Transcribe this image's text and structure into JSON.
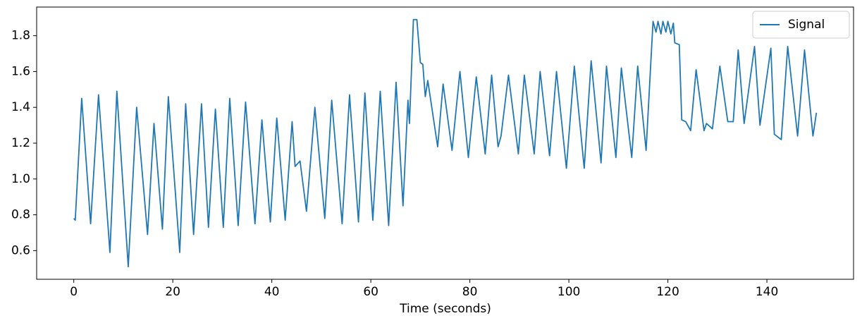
{
  "chart_data": {
    "type": "line",
    "xlabel": "Time (seconds)",
    "x": [
      0,
      0.3,
      1.6,
      3.4,
      5.0,
      7.3,
      8.7,
      11.0,
      12.7,
      14.9,
      16.2,
      17.9,
      19.1,
      21.4,
      22.6,
      24.2,
      25.8,
      27.2,
      28.6,
      30.2,
      31.5,
      33.2,
      34.7,
      36.6,
      38.0,
      39.7,
      41.0,
      42.7,
      44.1,
      44.7,
      45.7,
      47.0,
      48.7,
      50.7,
      52.1,
      54.2,
      55.7,
      57.5,
      58.8,
      60.4,
      61.9,
      63.6,
      65.1,
      66.5,
      67.5,
      67.8,
      68.6,
      69.3,
      70.0,
      70.5,
      71.0,
      71.5,
      73.5,
      74.6,
      76.4,
      78.0,
      79.7,
      81.3,
      83.1,
      84.4,
      85.7,
      86.3,
      87.8,
      89.8,
      91.0,
      93.0,
      94.2,
      96.1,
      97.5,
      99.5,
      101.1,
      103.1,
      104.5,
      106.5,
      107.6,
      109.5,
      110.6,
      112.7,
      113.9,
      115.6,
      117.0,
      117.6,
      118.0,
      118.6,
      119.0,
      119.6,
      120.0,
      120.6,
      121.1,
      121.4,
      122.3,
      122.8,
      123.6,
      124.6,
      125.7,
      127.3,
      127.8,
      129.0,
      130.5,
      132.1,
      133.2,
      134.2,
      135.4,
      137.5,
      138.6,
      140.8,
      141.5,
      142.9,
      144.2,
      146.2,
      147.6,
      149.3,
      150.0
    ],
    "series": [
      {
        "name": "Signal",
        "color": "#1f77b4",
        "values": [
          0.78,
          0.77,
          1.45,
          0.75,
          1.47,
          0.59,
          1.49,
          0.51,
          1.4,
          0.69,
          1.31,
          0.72,
          1.46,
          0.59,
          1.42,
          0.69,
          1.42,
          0.73,
          1.39,
          0.73,
          1.45,
          0.74,
          1.43,
          0.75,
          1.33,
          0.76,
          1.34,
          0.77,
          1.32,
          1.07,
          1.1,
          0.82,
          1.4,
          0.78,
          1.44,
          0.75,
          1.47,
          0.76,
          1.48,
          0.77,
          1.49,
          0.74,
          1.54,
          0.85,
          1.44,
          1.31,
          1.89,
          1.89,
          1.65,
          1.64,
          1.46,
          1.55,
          1.18,
          1.53,
          1.16,
          1.6,
          1.12,
          1.57,
          1.14,
          1.58,
          1.18,
          1.24,
          1.58,
          1.14,
          1.58,
          1.14,
          1.6,
          1.13,
          1.6,
          1.06,
          1.63,
          1.06,
          1.66,
          1.09,
          1.63,
          1.12,
          1.62,
          1.12,
          1.63,
          1.16,
          1.88,
          1.82,
          1.88,
          1.81,
          1.88,
          1.82,
          1.88,
          1.81,
          1.87,
          1.76,
          1.75,
          1.33,
          1.32,
          1.27,
          1.61,
          1.27,
          1.31,
          1.28,
          1.63,
          1.32,
          1.32,
          1.72,
          1.31,
          1.74,
          1.3,
          1.73,
          1.25,
          1.22,
          1.74,
          1.24,
          1.72,
          1.24,
          1.37
        ]
      }
    ],
    "xlim": [
      -7.5,
      157.5
    ],
    "ylim": [
      0.44,
      1.96
    ],
    "xticks": [
      0,
      20,
      40,
      60,
      80,
      100,
      120,
      140
    ],
    "yticks": [
      0.6,
      0.8,
      {
        "value": 1,
        "label": "1.0"
      },
      1.2,
      1.4,
      1.6,
      1.8
    ],
    "legend": "upper right"
  }
}
